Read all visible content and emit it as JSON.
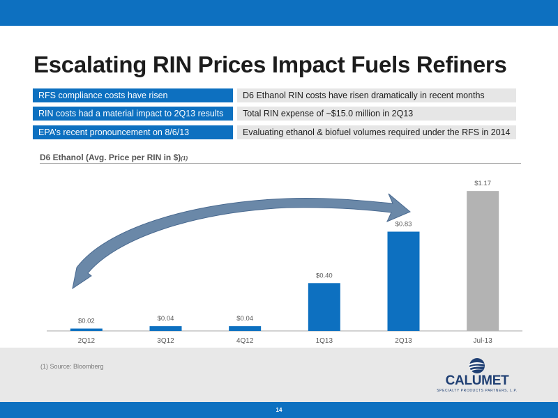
{
  "slide": {
    "title": "Escalating RIN Prices Impact Fuels Refiners",
    "page_number": "14",
    "footnote": "(1)  Source:  Bloomberg"
  },
  "rows": [
    {
      "left": "RFS compliance costs have risen",
      "right": "D6 Ethanol RIN costs have risen dramatically in recent months"
    },
    {
      "left": "RIN costs had a material impact to 2Q13 results",
      "right": "Total RIN expense of ~$15.0 million in 2Q13"
    },
    {
      "left": "EPA’s recent pronouncement on 8/6/13",
      "right": "Evaluating ethanol & biofuel volumes required under the RFS in 2014"
    }
  ],
  "logo": {
    "name": "CALUMET",
    "subtitle": "SPECIALTY PRODUCTS PARTNERS, L.P."
  },
  "colors": {
    "accent_blue": "#0d70c0",
    "highlight_bar": "#b3b3b3",
    "arrow_fill": "#6a88a8"
  },
  "chart_data": {
    "type": "bar",
    "title": "D6 Ethanol (Avg. Price per RIN in $)",
    "title_footnote_marker": "(1)",
    "categories": [
      "2Q12",
      "3Q12",
      "4Q12",
      "1Q13",
      "2Q13",
      "Jul-13"
    ],
    "values": [
      0.02,
      0.04,
      0.04,
      0.4,
      0.83,
      1.17
    ],
    "data_labels": [
      "$0.02",
      "$0.04",
      "$0.04",
      "$0.40",
      "$0.83",
      "$1.17"
    ],
    "bar_colors": [
      "#0d70c0",
      "#0d70c0",
      "#0d70c0",
      "#0d70c0",
      "#0d70c0",
      "#b3b3b3"
    ],
    "ylim": [
      0,
      1.2
    ],
    "grid": false,
    "legend": "none",
    "annotation": "curved arrow from 2Q12 to 2Q13"
  }
}
